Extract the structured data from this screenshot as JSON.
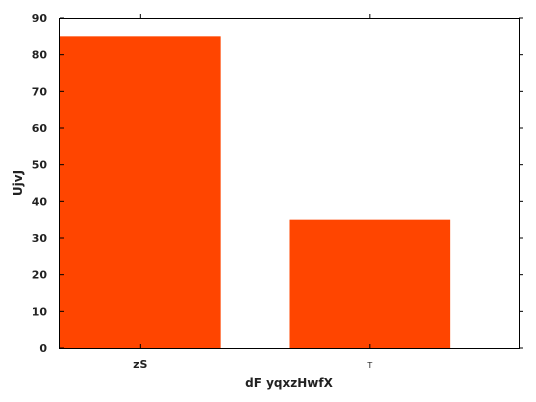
{
  "chart_data": {
    "type": "bar",
    "categories": [
      "zS",
      "T"
    ],
    "values": [
      85,
      35
    ],
    "xlabel": "dF yqxzHwfX",
    "ylabel": "UjvJ",
    "ylim": [
      0,
      90
    ],
    "yticks": [
      0,
      10,
      20,
      30,
      40,
      50,
      60,
      70,
      80,
      90
    ],
    "grid": false,
    "colors": {
      "bar": "#ff4500"
    }
  }
}
